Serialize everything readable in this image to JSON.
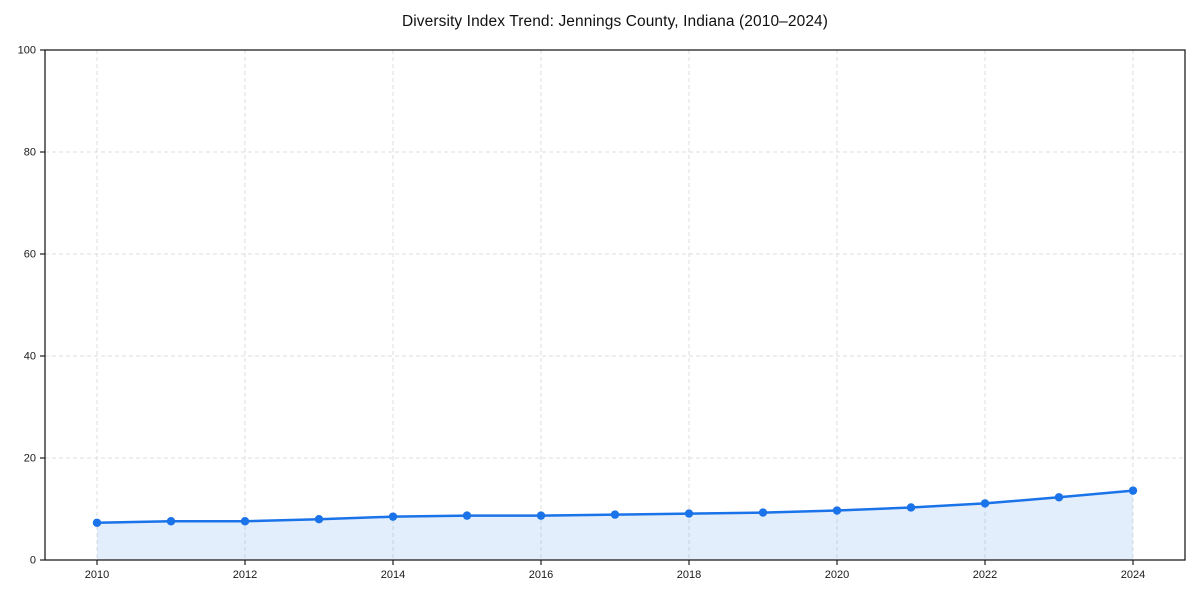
{
  "chart_data": {
    "type": "area",
    "title": "Diversity Index Trend: Jennings County, Indiana (2010–2024)",
    "x": [
      2010,
      2011,
      2012,
      2013,
      2014,
      2015,
      2016,
      2017,
      2018,
      2019,
      2020,
      2021,
      2022,
      2023,
      2024
    ],
    "values": [
      7.3,
      7.6,
      7.6,
      8.0,
      8.5,
      8.7,
      8.7,
      8.9,
      9.1,
      9.3,
      9.7,
      10.3,
      11.1,
      12.3,
      13.6
    ],
    "xlabel": "",
    "ylabel": "",
    "ylim": [
      0,
      100
    ],
    "xticks": [
      2010,
      2012,
      2014,
      2016,
      2018,
      2020,
      2022,
      2024
    ],
    "yticks": [
      0,
      20,
      40,
      60,
      80,
      100
    ],
    "grid": true,
    "grid_style": "dashed",
    "legend": "none",
    "marker": "circle",
    "colors": {
      "line": "#1a73e8",
      "marker_fill": "#1a73e8",
      "area_fill": "rgba(26,115,232,0.12)",
      "grid": "#dedede",
      "spine": "#1f1f1f",
      "tick_text": "#1a1a1a",
      "background": "#ffffff"
    }
  }
}
